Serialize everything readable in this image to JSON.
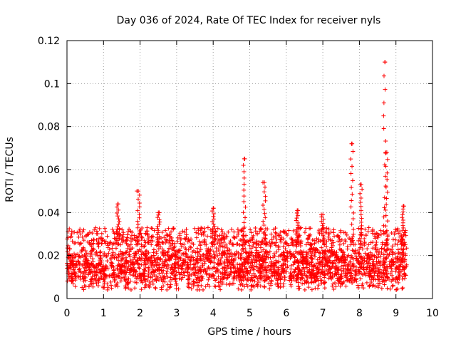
{
  "chart_data": {
    "type": "scatter",
    "title": "Day 036 of 2024, Rate Of TEC Index for receiver nyls",
    "xlabel": "GPS time / hours",
    "ylabel": "ROTI / TECUs",
    "xlim": [
      0,
      10
    ],
    "ylim": [
      0,
      0.12
    ],
    "x_ticks": [
      0,
      1,
      2,
      3,
      4,
      5,
      6,
      7,
      8,
      9,
      10
    ],
    "x_tick_labels": [
      "0",
      "1",
      "2",
      "3",
      "4",
      "5",
      "6",
      "7",
      "8",
      "9",
      "10"
    ],
    "y_ticks": [
      0,
      0.02,
      0.04,
      0.06,
      0.08,
      0.1,
      0.12
    ],
    "y_tick_labels": [
      "0",
      "0.02",
      "0.04",
      "0.06",
      "0.08",
      "0.1",
      "0.12"
    ],
    "grid": true,
    "marker": "plus",
    "color": "#ff0000",
    "series": [
      {
        "name": "ROTI",
        "x_range": [
          0,
          9.3
        ],
        "baseline_band": [
          0.005,
          0.025
        ],
        "peaks": [
          {
            "x": 1.4,
            "y": 0.044
          },
          {
            "x": 1.95,
            "y": 0.05
          },
          {
            "x": 2.5,
            "y": 0.04
          },
          {
            "x": 4.0,
            "y": 0.042
          },
          {
            "x": 4.85,
            "y": 0.065
          },
          {
            "x": 5.4,
            "y": 0.054
          },
          {
            "x": 6.3,
            "y": 0.041
          },
          {
            "x": 7.0,
            "y": 0.039
          },
          {
            "x": 7.8,
            "y": 0.072
          },
          {
            "x": 8.05,
            "y": 0.053
          },
          {
            "x": 8.7,
            "y": 0.11
          },
          {
            "x": 8.75,
            "y": 0.068
          },
          {
            "x": 9.2,
            "y": 0.043
          }
        ]
      }
    ]
  }
}
